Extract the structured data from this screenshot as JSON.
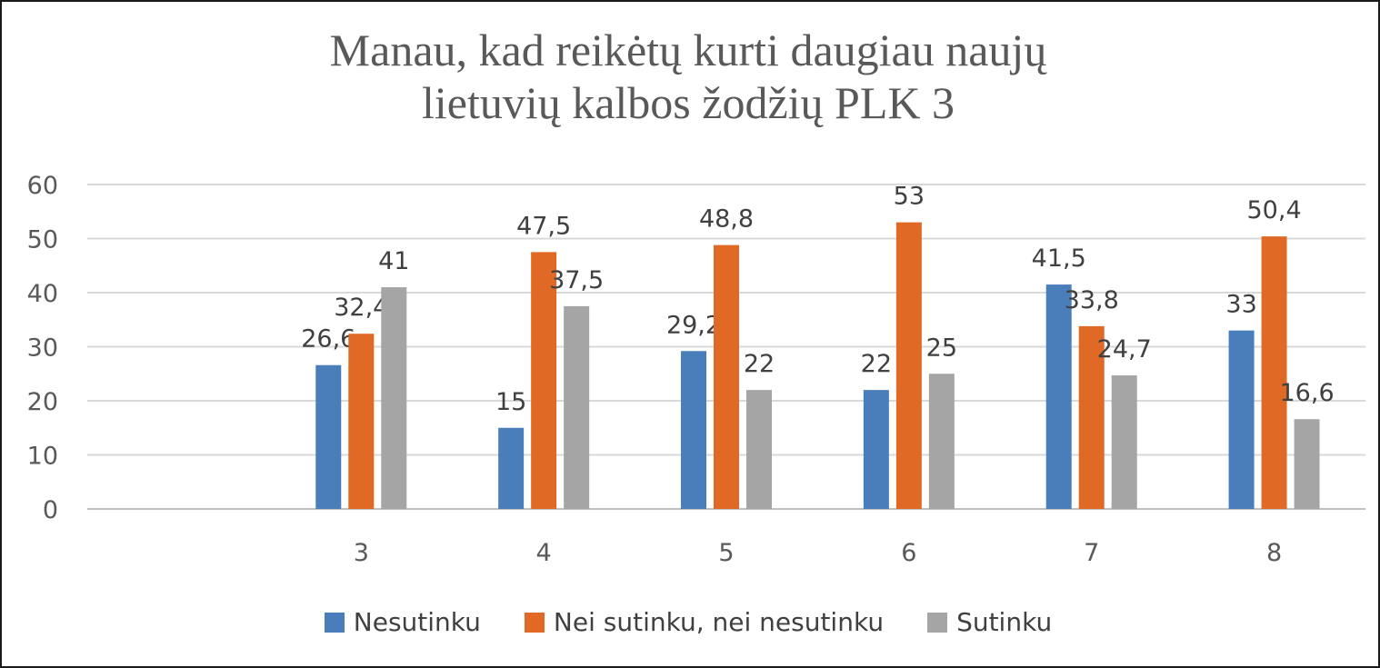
{
  "chart_data": {
    "type": "bar",
    "title_lines": [
      "Manau, kad reikėtų kurti daugiau naujų",
      "lietuvių kalbos žodžių PLK 3"
    ],
    "xlabel": "",
    "ylabel": "",
    "categories": [
      "",
      "3",
      "4",
      "5",
      "6",
      "7",
      "8"
    ],
    "ylim": [
      0,
      60
    ],
    "yticks": [
      0,
      10,
      20,
      30,
      40,
      50,
      60
    ],
    "grid": true,
    "legend_position": "bottom",
    "series": [
      {
        "name": "Nesutinku",
        "color": "#4a7ebb",
        "values": [
          null,
          26.6,
          15,
          29.2,
          22,
          41.5,
          33
        ],
        "labels": [
          "",
          "26,6",
          "15",
          "29,2",
          "22",
          "41,5",
          "33"
        ]
      },
      {
        "name": "Nei sutinku, nei nesutinku",
        "color": "#e06a25",
        "values": [
          null,
          32.4,
          47.5,
          48.8,
          53,
          33.8,
          50.4
        ],
        "labels": [
          "",
          "32,4",
          "47,5",
          "48,8",
          "53",
          "33,8",
          "50,4"
        ]
      },
      {
        "name": "Sutinku",
        "color": "#a5a5a5",
        "values": [
          null,
          41,
          37.5,
          22,
          25,
          24.7,
          16.6
        ],
        "labels": [
          "",
          "41",
          "37,5",
          "22",
          "25",
          "24,7",
          "16,6"
        ]
      }
    ]
  }
}
